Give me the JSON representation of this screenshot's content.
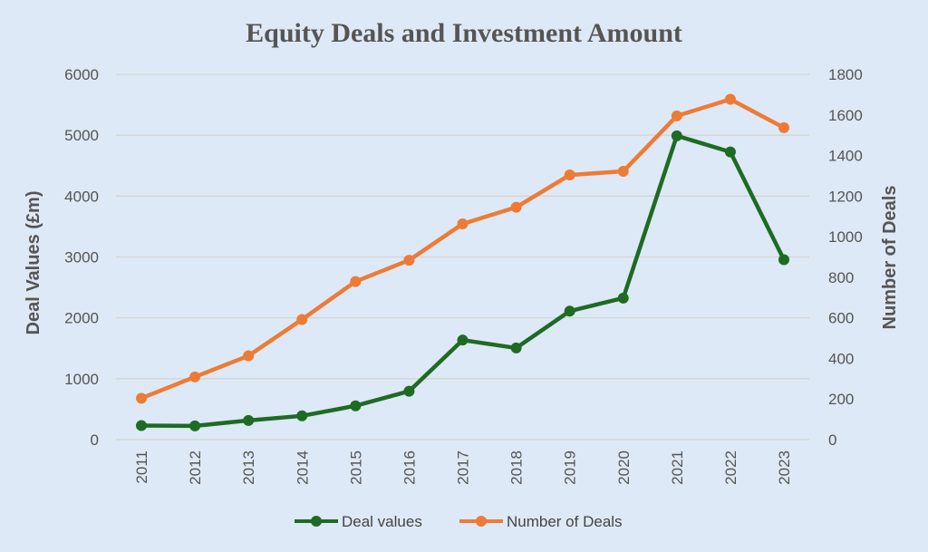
{
  "chart_data": {
    "type": "line",
    "title": "Equity Deals and Investment Amount",
    "categories": [
      "2011",
      "2012",
      "2013",
      "2014",
      "2015",
      "2016",
      "2017",
      "2018",
      "2019",
      "2020",
      "2021",
      "2022",
      "2023"
    ],
    "series": [
      {
        "name": "Deal values",
        "axis": "left",
        "color": "#1e6b23",
        "values": [
          230,
          225,
          315,
          390,
          555,
          795,
          1635,
          1505,
          2110,
          2325,
          4990,
          4725,
          2955
        ]
      },
      {
        "name": "Number of Deals",
        "axis": "right",
        "color": "#ee7b35",
        "values": [
          204,
          309,
          413,
          592,
          779,
          884,
          1063,
          1145,
          1304,
          1322,
          1595,
          1677,
          1537
        ]
      }
    ],
    "ylabel": "Deal Values (£m)",
    "y2label": "Number of Deals",
    "ylim": [
      0,
      6000
    ],
    "y2lim": [
      0,
      1800
    ],
    "yticks": [
      "0",
      "1000",
      "2000",
      "3000",
      "4000",
      "5000",
      "6000"
    ],
    "y2ticks": [
      "0",
      "200",
      "400",
      "600",
      "800",
      "1000",
      "1200",
      "1400",
      "1600",
      "1800"
    ],
    "grid": true,
    "legend_position": "bottom",
    "background": "#dde9f6"
  }
}
